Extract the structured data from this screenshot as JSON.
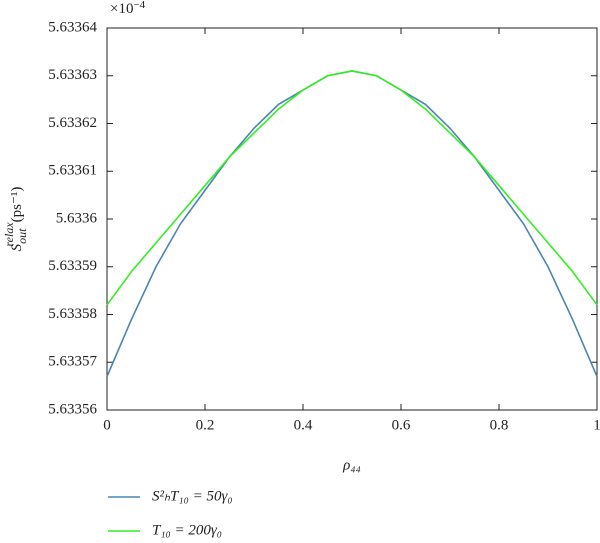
{
  "chart_data": {
    "type": "line",
    "y_multiplier": {
      "base": "×10",
      "exponent": "−4"
    },
    "ylabel": {
      "symbol": "S",
      "sub": "out",
      "sup": "relax",
      "unit": "(ps⁻¹)"
    },
    "xlabel": "ρ₄₄",
    "x": [
      0,
      0.05,
      0.1,
      0.15,
      0.2,
      0.25,
      0.3,
      0.35,
      0.4,
      0.45,
      0.5,
      0.55,
      0.6,
      0.65,
      0.7,
      0.75,
      0.8,
      0.85,
      0.9,
      0.95,
      1
    ],
    "series": [
      {
        "name": "S²ₕT₁₀ = 50γ₀",
        "color": "#4a86b0",
        "values": [
          5.633567,
          5.633579,
          5.63359,
          5.633599,
          5.633606,
          5.633613,
          5.633619,
          5.633624,
          5.633627,
          5.63363,
          5.633631,
          5.63363,
          5.633627,
          5.633624,
          5.633619,
          5.633613,
          5.633606,
          5.633599,
          5.63359,
          5.633579,
          5.633567
        ]
      },
      {
        "name": "T₁₀ = 200γ₀",
        "color": "#33ee22",
        "values": [
          5.633582,
          5.633589,
          5.633595,
          5.633601,
          5.633607,
          5.633613,
          5.633618,
          5.633623,
          5.633627,
          5.63363,
          5.633631,
          5.63363,
          5.633627,
          5.633623,
          5.633618,
          5.633613,
          5.633607,
          5.633601,
          5.633595,
          5.633589,
          5.633582
        ]
      }
    ],
    "xlim": [
      0,
      1
    ],
    "xticks": [
      0,
      0.2,
      0.4,
      0.6,
      0.8,
      1
    ],
    "ylim": [
      5.63356,
      5.63364
    ],
    "yticks": [
      5.63356,
      5.63357,
      5.63358,
      5.63359,
      5.6336,
      5.63361,
      5.63362,
      5.63363,
      5.63364
    ],
    "grid": false,
    "legend": "below"
  }
}
